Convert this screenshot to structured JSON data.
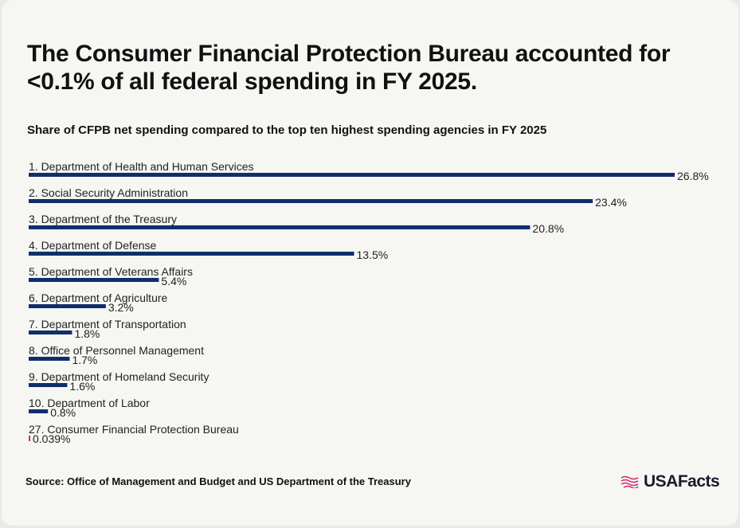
{
  "title": "The Consumer Financial Protection Bureau accounted for <0.1% of all federal spending in FY 2025.",
  "subtitle": "Share of CFPB net spending compared to the top ten highest spending agencies in FY 2025",
  "source": "Source: Office of Management and Budget and US Department of the Treasury",
  "logo_text": "USAFacts",
  "colors": {
    "bar": "#0f2e6b",
    "highlight": "#d62a6c",
    "background": "#f6f6f3"
  },
  "chart_data": {
    "type": "bar",
    "orientation": "horizontal",
    "categories": [
      "1. Department of Health and Human Services",
      "2. Social Security Administration",
      "3. Department of the Treasury",
      "4. Department of Defense",
      "5. Department of Veterans Affairs",
      "6. Department of Agriculture",
      "7. Department of Transportation",
      "8. Office of Personnel Management",
      "9. Department of Homeland Security",
      "10. Department of Labor",
      "27. Consumer Financial Protection Bureau"
    ],
    "values": [
      26.8,
      23.4,
      20.8,
      13.5,
      5.4,
      3.2,
      1.8,
      1.7,
      1.6,
      0.8,
      0.039
    ],
    "value_labels": [
      "26.8%",
      "23.4%",
      "20.8%",
      "13.5%",
      "5.4%",
      "3.2%",
      "1.8%",
      "1.7%",
      "1.6%",
      "0.8%",
      "0.039%"
    ],
    "highlight_index": 10,
    "xlim": [
      0,
      26.8
    ],
    "unit": "%"
  }
}
